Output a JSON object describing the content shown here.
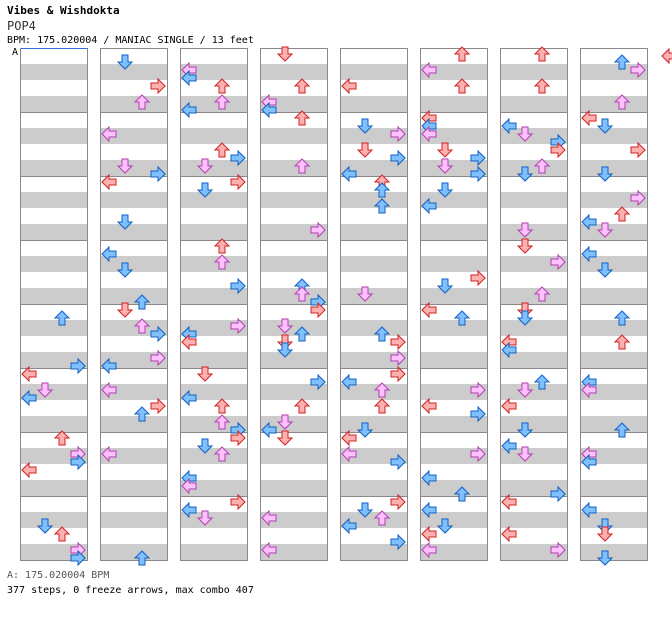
{
  "song": {
    "title": "Vibes & Wishdokta",
    "id": "POP4",
    "meta": "BPM: 175.020004 / MANIAC SINGLE / 13 feet"
  },
  "chart_marker": "A",
  "footer": {
    "bpm": "A: 175.020004 BPM",
    "stats": "377 steps, 0 freeze arrows, max combo 407"
  },
  "colors": {
    "red": "#ffb0b0",
    "red_stroke": "#d02020",
    "blue": "#80c0ff",
    "blue_stroke": "#1060c0",
    "pink": "#ffc0ff",
    "pink_stroke": "#b040b0",
    "stripe": "#cccccc",
    "measure_line": "#888888"
  },
  "icons": {
    "left": "left-arrow-icon",
    "down": "down-arrow-icon",
    "up": "up-arrow-icon",
    "right": "right-arrow-icon"
  }
}
